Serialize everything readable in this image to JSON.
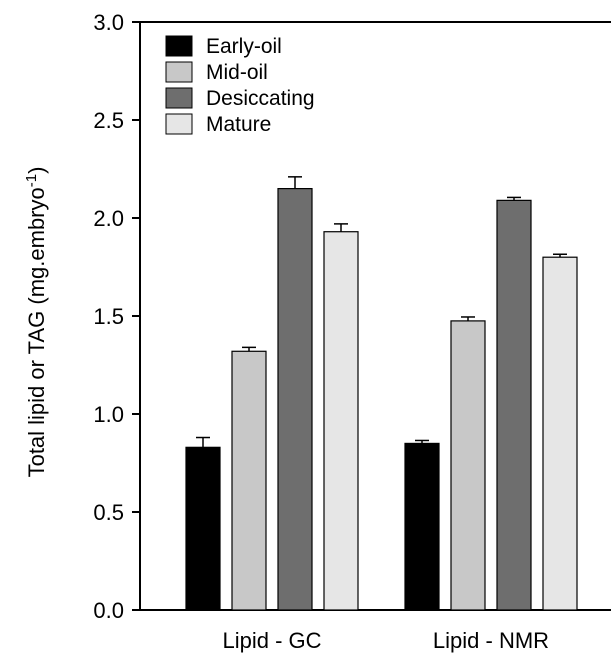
{
  "chart_data": {
    "type": "bar",
    "categories": [
      "Lipid - GC",
      "Lipid - NMR"
    ],
    "series": [
      {
        "name": "Early-oil",
        "values": [
          0.83,
          0.85
        ],
        "errors": [
          0.05,
          0.015
        ],
        "color": "#000000"
      },
      {
        "name": "Mid-oil",
        "values": [
          1.32,
          1.475
        ],
        "errors": [
          0.02,
          0.02
        ],
        "color": "#c8c8c8"
      },
      {
        "name": "Desiccating",
        "values": [
          2.15,
          2.09
        ],
        "errors": [
          0.06,
          0.015
        ],
        "color": "#6e6e6e"
      },
      {
        "name": "Mature",
        "values": [
          1.93,
          1.8
        ],
        "errors": [
          0.04,
          0.015
        ],
        "color": "#e6e6e6"
      }
    ],
    "ylabel_main": "Total lipid or TAG (mg.embryo",
    "ylabel_sup": "-1",
    "ylabel_close": ")",
    "ylim": [
      0,
      3.0
    ],
    "yticks": [
      "0.0",
      "0.5",
      "1.0",
      "1.5",
      "2.0",
      "2.5",
      "3.0"
    ],
    "legend_position": "top-left",
    "grid": false
  }
}
